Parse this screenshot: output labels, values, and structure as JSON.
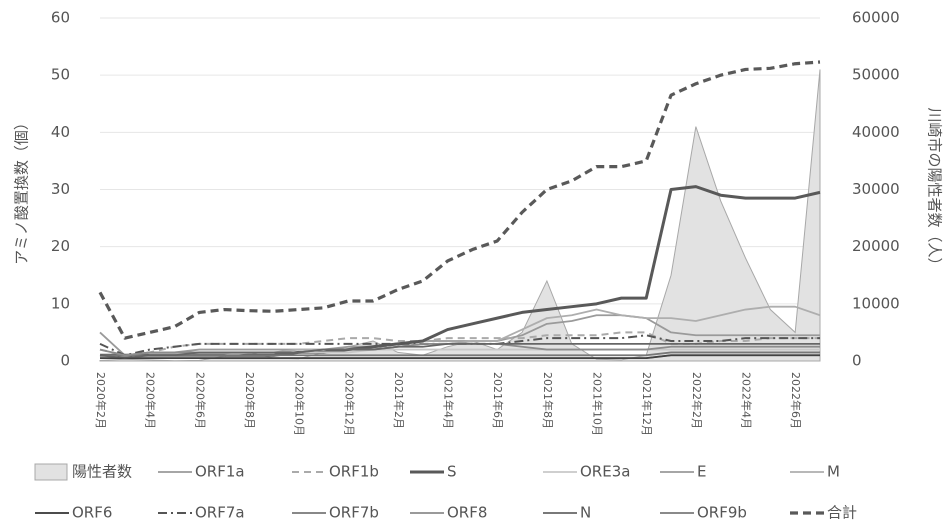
{
  "chart_data": {
    "type": "line",
    "ylabel": "アミノ酸置換数（個）",
    "y2label": "川崎市の陽性者数（人）",
    "categories": [
      "2020年2月",
      null,
      "2020年4月",
      null,
      "2020年6月",
      null,
      "2020年8月",
      null,
      "2020年10月",
      null,
      "2020年12月",
      null,
      "2021年2月",
      null,
      "2021年4月",
      null,
      "2021年6月",
      null,
      "2021年8月",
      null,
      "2021年10月",
      null,
      "2021年12月",
      null,
      "2022年2月",
      null,
      "2022年4月",
      null,
      "2022年6月",
      null
    ],
    "ylim": [
      0,
      60
    ],
    "yticks": [
      0,
      10,
      20,
      30,
      40,
      50,
      60
    ],
    "y2lim": [
      0,
      60000
    ],
    "y2ticks": [
      0,
      10000,
      20000,
      30000,
      40000,
      50000,
      60000
    ],
    "grid": true,
    "series": [
      {
        "name": "陽性者数",
        "type": "area",
        "axis": "y2",
        "color": "#e2e2e2",
        "values": [
          100,
          300,
          200,
          50,
          100,
          800,
          1500,
          500,
          400,
          1500,
          2500,
          3500,
          1500,
          1000,
          2500,
          3500,
          2000,
          5000,
          14000,
          3000,
          300,
          200,
          1000,
          15000,
          41000,
          28000,
          18000,
          9000,
          5000,
          51000
        ]
      },
      {
        "name": "ORF1a",
        "color": "#9a9a9a",
        "style": "solid",
        "values": [
          5,
          1,
          1.5,
          1.5,
          2,
          2,
          2,
          2,
          2,
          2,
          2.5,
          2.5,
          3,
          3.5,
          3.5,
          3.5,
          3.5,
          4.5,
          6.5,
          7,
          8,
          8,
          7.5,
          5,
          4.5,
          4.5,
          4.5,
          4.5,
          4.5,
          4.5
        ]
      },
      {
        "name": "ORF1b",
        "color": "#aaaaaa",
        "style": "dashed",
        "values": [
          2,
          1,
          1.5,
          2.5,
          3,
          3,
          3,
          3,
          3,
          3.5,
          4,
          4,
          3.5,
          3.5,
          4,
          4,
          4,
          4,
          4.5,
          4.5,
          4.5,
          5,
          5,
          3,
          3,
          3.5,
          3.5,
          4,
          4,
          4
        ]
      },
      {
        "name": "S",
        "color": "#595959",
        "style": "bold",
        "values": [
          1,
          1,
          1,
          1,
          1,
          1,
          1,
          1,
          1.5,
          1.5,
          2,
          2.5,
          3,
          3.5,
          5.5,
          6.5,
          7.5,
          8.5,
          9,
          9.5,
          10,
          11,
          11,
          30,
          30.5,
          29,
          28.5,
          28.5,
          28.5,
          29.5
        ]
      },
      {
        "name": "ORE3a",
        "color": "#c8c8c8",
        "style": "solid",
        "values": [
          1,
          0.5,
          1,
          1,
          1,
          1,
          1.5,
          1.5,
          1.5,
          1.5,
          1.5,
          2,
          2,
          2,
          2,
          2,
          2,
          2,
          2,
          2,
          2,
          2,
          2,
          2,
          2,
          2,
          2,
          2,
          2,
          2
        ]
      },
      {
        "name": "E",
        "color": "#999999",
        "style": "solid",
        "values": [
          0.5,
          0.5,
          0.5,
          0.5,
          0.5,
          0.5,
          0.5,
          0.5,
          0.5,
          0.5,
          0.5,
          0.5,
          0.5,
          0.5,
          0.5,
          0.5,
          0.5,
          0.5,
          0.5,
          0.5,
          0.5,
          0.5,
          0.5,
          1,
          1,
          1,
          1,
          1,
          1,
          1
        ]
      },
      {
        "name": "M",
        "color": "#aeaeae",
        "style": "solid",
        "values": [
          1,
          0.5,
          1,
          1,
          1.5,
          1.5,
          1.5,
          1.5,
          2,
          2,
          2,
          2,
          2.5,
          3,
          3,
          3.5,
          3.5,
          5.5,
          7.5,
          8,
          9,
          8,
          7.5,
          7.5,
          7,
          8,
          9,
          9.5,
          9.5,
          8
        ]
      },
      {
        "name": "ORF6",
        "color": "#333333",
        "style": "solid",
        "values": [
          0.5,
          0.5,
          0.5,
          0.5,
          0.5,
          0.5,
          0.5,
          0.5,
          0.5,
          0.5,
          0.5,
          0.5,
          0.5,
          0.5,
          0.5,
          0.5,
          0.5,
          0.5,
          0.5,
          0.5,
          0.5,
          0.5,
          0.5,
          1,
          1,
          1,
          1,
          1,
          1,
          1
        ]
      },
      {
        "name": "ORF7a",
        "color": "#555555",
        "style": "dashdot",
        "values": [
          3,
          1,
          2,
          2.5,
          3,
          3,
          3,
          3,
          3,
          3,
          3,
          3,
          3,
          3,
          3,
          3,
          3,
          3.5,
          4,
          4,
          4,
          4,
          4.5,
          3.5,
          3.5,
          3.5,
          4,
          4,
          4,
          4
        ]
      },
      {
        "name": "ORF7b",
        "color": "#777777",
        "style": "solid",
        "values": [
          1,
          1,
          1,
          1,
          1,
          1,
          1,
          1,
          1,
          1,
          1,
          1,
          1,
          1,
          1,
          1,
          1,
          1,
          1,
          1,
          1,
          1,
          1,
          1.5,
          1.5,
          1.5,
          1.5,
          1.5,
          1.5,
          1.5
        ]
      },
      {
        "name": "ORF8",
        "color": "#8c8c8c",
        "style": "solid",
        "values": [
          2,
          1,
          1.5,
          1.5,
          1.5,
          1.5,
          1.5,
          1.5,
          1.5,
          2,
          2,
          2,
          2.5,
          3,
          3,
          3,
          3,
          2.5,
          2,
          2,
          2,
          2,
          2,
          2.5,
          2.5,
          2.5,
          2.5,
          2.5,
          2.5,
          2.5
        ]
      },
      {
        "name": "N",
        "color": "#666666",
        "style": "solid",
        "values": [
          1,
          0.5,
          1,
          1,
          1.5,
          1.5,
          1.5,
          1.5,
          1.5,
          2,
          2,
          2,
          2.5,
          2.5,
          3,
          3,
          3,
          3,
          3,
          3,
          3,
          3,
          3,
          3,
          3,
          3,
          3,
          3,
          3,
          3
        ]
      },
      {
        "name": "ORF9b",
        "color": "#444444",
        "style": "thin",
        "values": [
          0.5,
          0.5,
          0.5,
          0.5,
          0.5,
          0.5,
          0.5,
          0.5,
          0.5,
          0.5,
          0.5,
          0.5,
          0.5,
          0.5,
          0.5,
          0.5,
          0.5,
          0.5,
          0.5,
          0.5,
          0.5,
          0.5,
          0.5,
          1,
          1,
          1,
          1,
          1,
          1,
          1
        ]
      },
      {
        "name": "合計",
        "color": "#595959",
        "style": "bold-dashed",
        "values": [
          12,
          4,
          5,
          6,
          8.5,
          9,
          8.8,
          8.7,
          9,
          9.3,
          10.5,
          10.5,
          12.5,
          14,
          17.5,
          19.5,
          21,
          26,
          30,
          31.5,
          34,
          34,
          35,
          46.5,
          48.5,
          50,
          51,
          51.2,
          52,
          52.3
        ]
      }
    ]
  }
}
